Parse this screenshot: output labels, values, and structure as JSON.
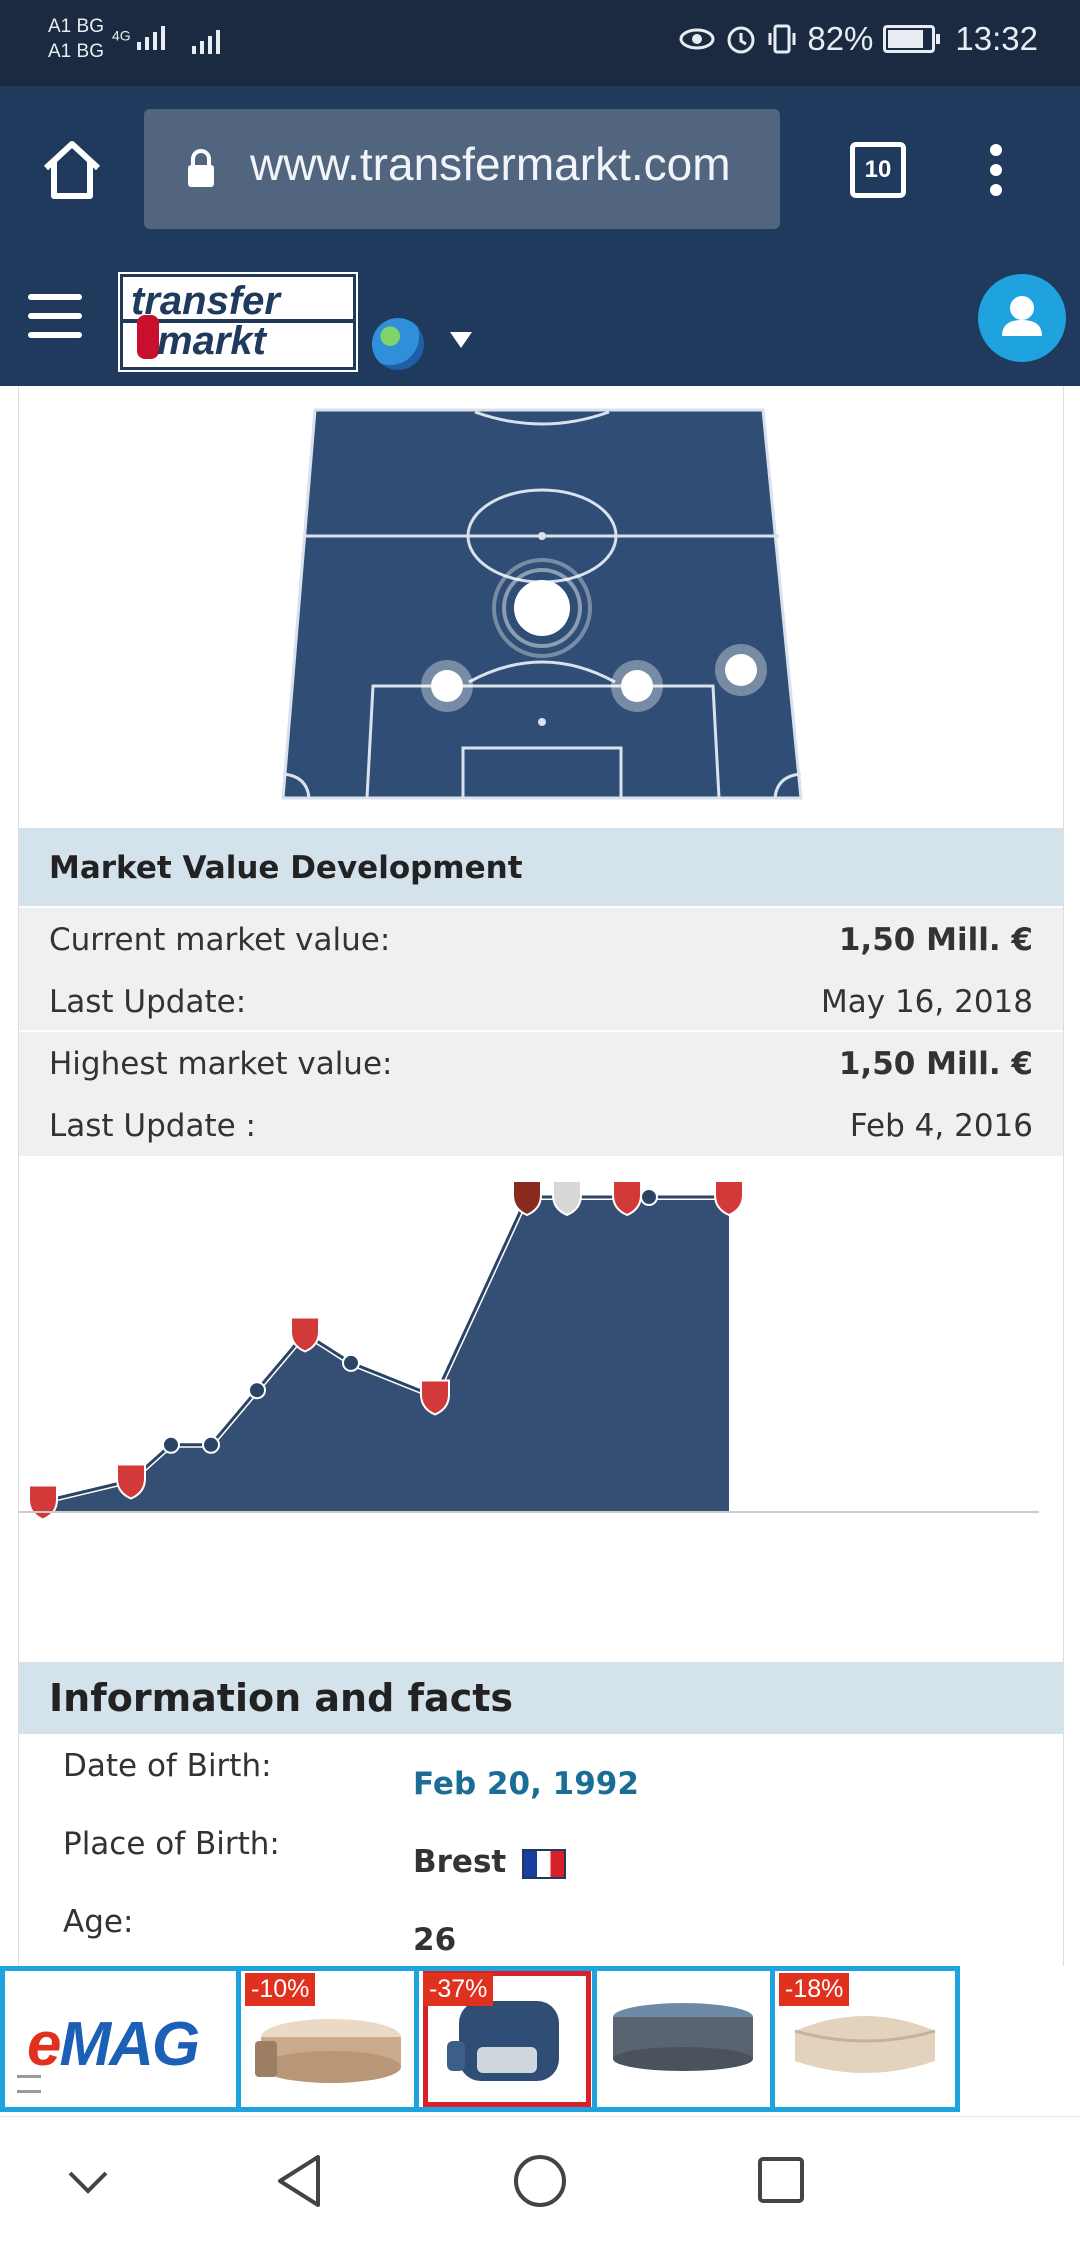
{
  "status_bar": {
    "carrier_1": "A1 BG",
    "carrier_2": "A1 BG",
    "network": "4G",
    "battery": "82%",
    "battery_level": 0.82,
    "time": "13:32"
  },
  "browser": {
    "url": "www.transfermarkt.com",
    "tab_count": "10"
  },
  "site": {
    "logo_line1": "transfer",
    "logo_line2": "markt"
  },
  "market_value": {
    "heading": "Market Value Development",
    "current_label": "Current market value:",
    "current_value": "1,50 Mill. €",
    "last_update_label": "Last Update:",
    "last_update_value": "May 16, 2018",
    "highest_label": "Highest market value:",
    "highest_value": "1,50 Mill. €",
    "highest_update_label": "Last Update :",
    "highest_update_value": "Feb 4, 2016"
  },
  "chart_data": {
    "type": "area",
    "values": [
      0.05,
      0.15,
      0.32,
      0.32,
      0.58,
      0.85,
      0.71,
      0.55,
      1.5,
      1.5,
      1.5,
      1.5,
      1.5
    ],
    "ylim": [
      0,
      1.6
    ],
    "grid": false,
    "colors": {
      "fill": "#344f73",
      "line": "#ffffff",
      "point": "#2b4466"
    }
  },
  "info": {
    "heading": "Information and facts",
    "dob_label": "Date of Birth:",
    "dob_value": "Feb 20, 1992",
    "pob_label": "Place of Birth:",
    "pob_value": "Brest",
    "age_label": "Age:",
    "age_value": "26"
  },
  "ad": {
    "brand": "eMAG",
    "badge_1": "-10%",
    "badge_2": "-37%",
    "badge_3": "-18%"
  },
  "colors": {
    "header": "#1f3a5c",
    "section": "#d4e2ec",
    "accent": "#1fa3df"
  }
}
